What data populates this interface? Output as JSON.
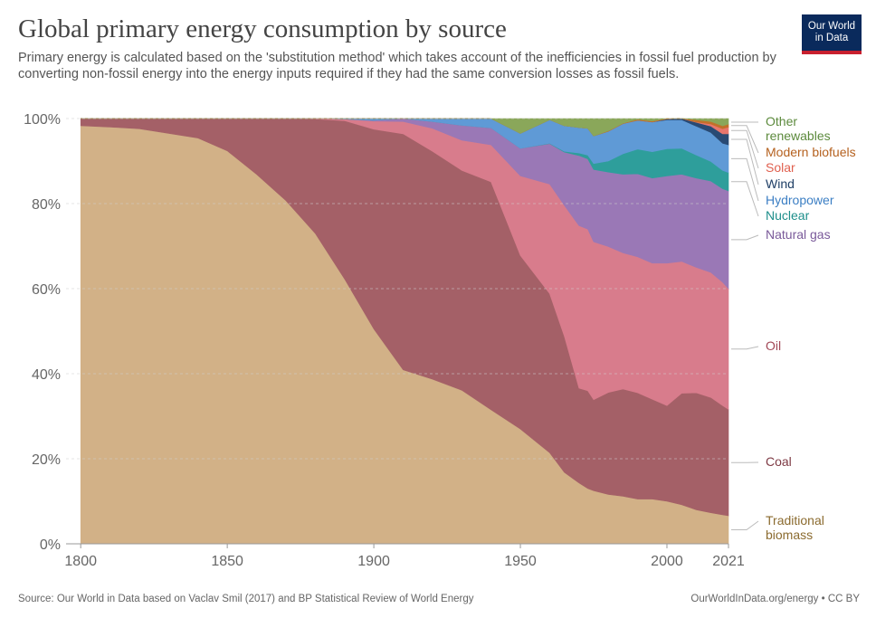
{
  "header": {
    "title": "Global primary energy consumption by source",
    "subtitle": "Primary energy is calculated based on the 'substitution method' which takes account of the inefficiencies in fossil fuel production by converting non-fossil energy into the energy inputs required if they had the same conversion losses as fossil fuels."
  },
  "logo": {
    "line1": "Our World",
    "line2": "in Data",
    "bg": "#0a2a5c",
    "stripe": "#c8202f"
  },
  "footer": {
    "source": "Source: Our World in Data based on Vaclav Smil (2017) and BP Statistical Review of World Energy",
    "credit": "OurWorldInData.org/energy • CC BY"
  },
  "chart_data": {
    "type": "area",
    "stacked": true,
    "stack_order": [
      "Traditional biomass",
      "Coal",
      "Oil",
      "Natural gas",
      "Nuclear",
      "Hydropower",
      "Wind",
      "Solar",
      "Modern biofuels",
      "Other renewables"
    ],
    "x": [
      1800,
      1810,
      1820,
      1830,
      1840,
      1850,
      1860,
      1870,
      1880,
      1890,
      1900,
      1910,
      1920,
      1930,
      1940,
      1950,
      1960,
      1965,
      1970,
      1973,
      1975,
      1980,
      1985,
      1990,
      1995,
      2000,
      2005,
      2010,
      2015,
      2019,
      2021
    ],
    "xlim": [
      1795,
      2021
    ],
    "ylim": [
      0,
      100
    ],
    "xticks": [
      "1800",
      "1850",
      "1900",
      "1950",
      "2000",
      "2021"
    ],
    "yticks": [
      "0%",
      "20%",
      "40%",
      "60%",
      "80%",
      "100%"
    ],
    "grid": "horizontal dashed",
    "series": [
      {
        "name": "Traditional biomass",
        "color": "#d2b187",
        "values": [
          98.3,
          98.0,
          97.6,
          96.5,
          95.4,
          92.4,
          86.9,
          80.7,
          73.0,
          62.3,
          50.5,
          40.9,
          38.7,
          36.1,
          31.5,
          27.0,
          21.4,
          16.8,
          14.3,
          13.0,
          12.5,
          11.6,
          11.2,
          10.5,
          10.5,
          10.0,
          9.2,
          8.0,
          7.3,
          6.8,
          6.6
        ]
      },
      {
        "name": "Coal",
        "color": "#a46067",
        "values": [
          1.7,
          2.0,
          2.4,
          3.5,
          4.6,
          7.6,
          13.1,
          19.3,
          26.9,
          37.2,
          47.0,
          55.5,
          53.6,
          51.7,
          53.6,
          40.8,
          37.4,
          32.0,
          22.3,
          23.0,
          21.4,
          24.0,
          25.2,
          25.0,
          23.5,
          22.5,
          26.2,
          27.5,
          27.1,
          25.7,
          25.0
        ]
      },
      {
        "name": "Oil",
        "color": "#d87c8c",
        "values": [
          0,
          0,
          0,
          0,
          0,
          0,
          0,
          0,
          0.1,
          0.4,
          1.9,
          2.9,
          5.4,
          7.1,
          8.7,
          18.7,
          25.8,
          30.8,
          38.2,
          38.0,
          37.1,
          34.3,
          32.0,
          32.0,
          32.0,
          33.5,
          31.0,
          29.5,
          29.4,
          29.0,
          28.4
        ]
      },
      {
        "name": "Natural gas",
        "color": "#9a78b6",
        "values": [
          0,
          0,
          0,
          0,
          0,
          0,
          0,
          0,
          0,
          0,
          0.2,
          0.7,
          1.6,
          3.5,
          4.0,
          6.5,
          9.5,
          12.5,
          16.5,
          16.5,
          17.0,
          17.5,
          18.5,
          19.5,
          20.0,
          20.5,
          20.5,
          21.0,
          21.5,
          22.0,
          23.0
        ]
      },
      {
        "name": "Nuclear",
        "color": "#2e9e9b",
        "values": [
          0,
          0,
          0,
          0,
          0,
          0,
          0,
          0,
          0,
          0,
          0,
          0,
          0,
          0,
          0,
          0,
          0.1,
          0.2,
          0.6,
          0.9,
          1.4,
          2.6,
          4.8,
          5.8,
          6.2,
          6.4,
          6.1,
          5.4,
          4.6,
          4.3,
          4.3
        ]
      },
      {
        "name": "Hydropower",
        "color": "#5f9ad6",
        "values": [
          0,
          0,
          0,
          0,
          0,
          0,
          0,
          0,
          0,
          0.1,
          0.4,
          0.9,
          1.4,
          2.2,
          2.6,
          3.5,
          5.5,
          6.0,
          6.0,
          6.3,
          6.5,
          7.0,
          7.1,
          6.8,
          7.0,
          6.8,
          6.7,
          6.8,
          6.8,
          6.4,
          6.5
        ]
      },
      {
        "name": "Wind",
        "color": "#294a73",
        "values": [
          0,
          0,
          0,
          0,
          0,
          0,
          0,
          0,
          0,
          0,
          0,
          0,
          0,
          0,
          0,
          0,
          0,
          0,
          0,
          0,
          0,
          0,
          0,
          0,
          0,
          0.2,
          0.3,
          0.9,
          1.5,
          2.2,
          2.6
        ]
      },
      {
        "name": "Solar",
        "color": "#e8766c",
        "values": [
          0,
          0,
          0,
          0,
          0,
          0,
          0,
          0,
          0,
          0,
          0,
          0,
          0,
          0,
          0,
          0,
          0,
          0,
          0,
          0,
          0,
          0,
          0,
          0,
          0,
          0,
          0,
          0.1,
          0.5,
          1.2,
          1.6
        ]
      },
      {
        "name": "Modern biofuels",
        "color": "#c2702a",
        "values": [
          0,
          0,
          0,
          0,
          0,
          0,
          0,
          0,
          0,
          0,
          0,
          0,
          0,
          0,
          0,
          0,
          0,
          0,
          0,
          0,
          0,
          0.1,
          0.1,
          0.2,
          0.2,
          0.2,
          0.3,
          0.5,
          0.6,
          0.7,
          0.7
        ]
      },
      {
        "name": "Other renewables",
        "color": "#8aa75a",
        "values": [
          0,
          0,
          0,
          0,
          0,
          0,
          0,
          0,
          0,
          0,
          0,
          0,
          0,
          0,
          0,
          0,
          0,
          0,
          0.1,
          0.3,
          0.3,
          0.5,
          0.6,
          0.6,
          0.6,
          0.6,
          0.7,
          0.8,
          0.9,
          0.9,
          0.9
        ]
      }
    ],
    "legend": {
      "placement": "right",
      "entries": [
        {
          "lines": [
            "Other",
            "renewables"
          ],
          "color": "#5c8a3c"
        },
        {
          "lines": [
            "Modern biofuels"
          ],
          "color": "#b5611f"
        },
        {
          "lines": [
            "Solar"
          ],
          "color": "#e0604f"
        },
        {
          "lines": [
            "Wind"
          ],
          "color": "#1f3f66"
        },
        {
          "lines": [
            "Hydropower"
          ],
          "color": "#3c7fc4"
        },
        {
          "lines": [
            "Nuclear"
          ],
          "color": "#1e8f8b"
        },
        {
          "lines": [
            "Natural gas"
          ],
          "color": "#7a5a9a"
        },
        {
          "lines": [
            "Oil"
          ],
          "color": "#a24756"
        },
        {
          "lines": [
            "Coal"
          ],
          "color": "#7e3a44"
        },
        {
          "lines": [
            "Traditional",
            "biomass"
          ],
          "color": "#8b6b2f"
        }
      ]
    }
  }
}
